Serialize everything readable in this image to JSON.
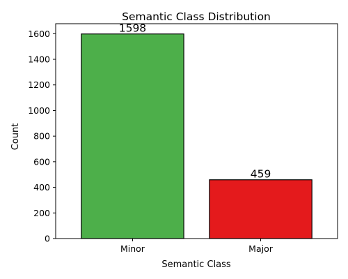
{
  "chart_data": {
    "type": "bar",
    "title": "Semantic Class Distribution",
    "xlabel": "Semantic Class",
    "ylabel": "Count",
    "categories": [
      "Minor",
      "Major"
    ],
    "values": [
      1598,
      459
    ],
    "colors": [
      "#4daf4a",
      "#e41a1c"
    ],
    "edge_color": "#000000",
    "ylim": [
      0,
      1678
    ],
    "yticks": [
      0,
      200,
      400,
      600,
      800,
      1000,
      1200,
      1400,
      1600
    ],
    "data_labels": [
      "1598",
      "459"
    ],
    "grid": false,
    "legend": "none"
  }
}
